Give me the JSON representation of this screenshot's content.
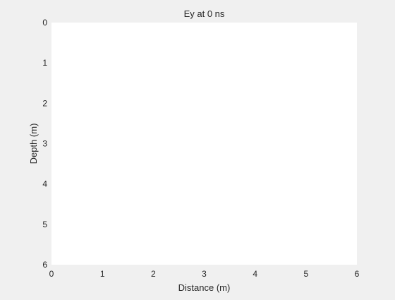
{
  "chart_data": {
    "type": "heatmap",
    "title": "Ey at 0 ns",
    "xlabel": "Distance (m)",
    "ylabel": "Depth (m)",
    "xlim": [
      0,
      6
    ],
    "ylim": [
      0,
      6
    ],
    "y_reversed": true,
    "x_ticks": [
      0,
      1,
      2,
      3,
      4,
      5,
      6
    ],
    "y_ticks": [
      0,
      1,
      2,
      3,
      4,
      5,
      6
    ],
    "grid": false,
    "values": [],
    "background_color": "#f0f0f0",
    "plot_color": "#ffffff",
    "text_color": "#262626"
  }
}
